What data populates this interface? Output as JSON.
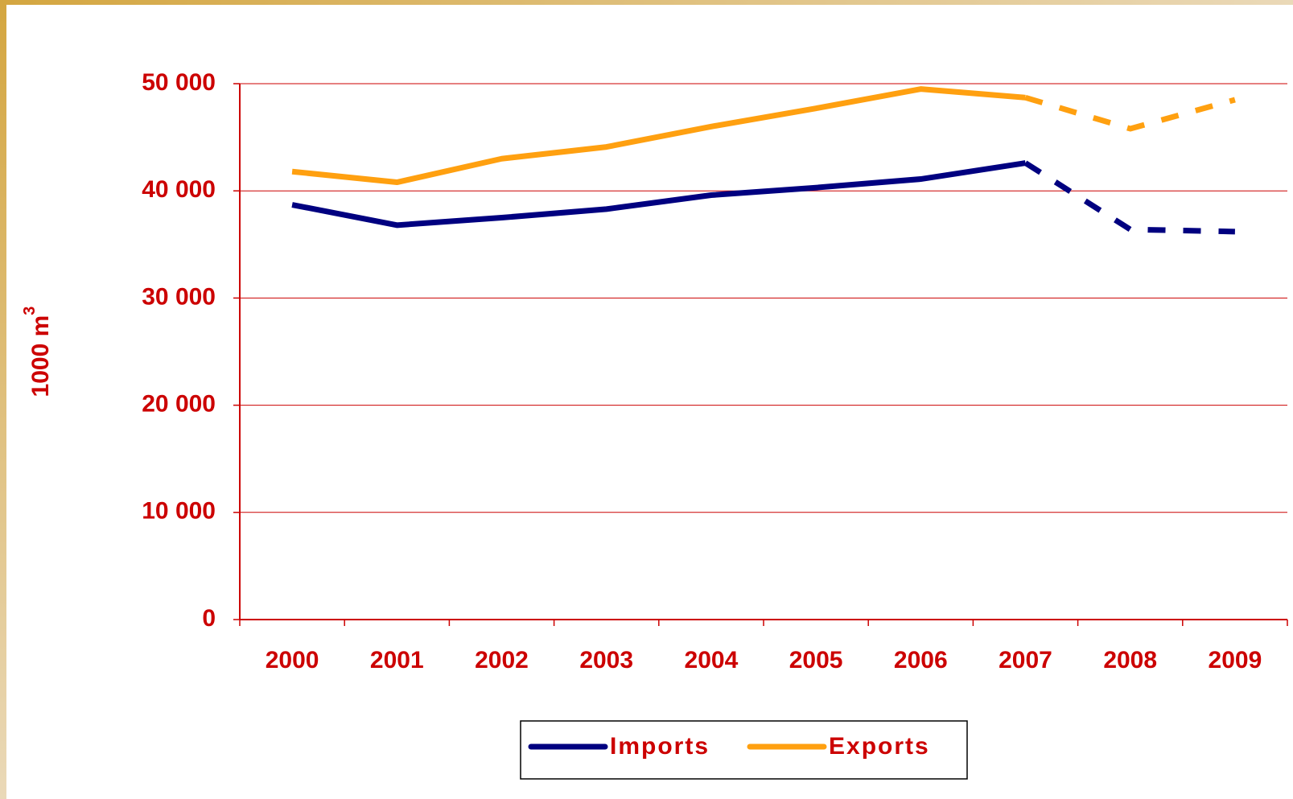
{
  "chart_data": {
    "type": "line",
    "ylabel": {
      "text": "1000 m",
      "superscript": "3"
    },
    "categories": [
      "2000",
      "2001",
      "2002",
      "2003",
      "2004",
      "2005",
      "2006",
      "2007",
      "2008",
      "2009"
    ],
    "series": [
      {
        "name": "Imports",
        "color": "#000080",
        "values": [
          38700,
          36800,
          37500,
          38300,
          39600,
          40300,
          41100,
          42600,
          36400,
          36200
        ]
      },
      {
        "name": "Exports",
        "color": "#ffa010",
        "values": [
          41800,
          40800,
          43000,
          44100,
          46000,
          47700,
          49500,
          48700,
          45800,
          48500
        ]
      }
    ],
    "dashed_from": "2007",
    "ylim": [
      0,
      50000
    ],
    "yticks": [
      0,
      {
        "value": 10000,
        "label": "10 000"
      },
      {
        "value": 20000,
        "label": "20 000"
      },
      {
        "value": 30000,
        "label": "30 000"
      },
      {
        "value": 40000,
        "label": "40 000"
      },
      {
        "value": 50000,
        "label": "50 000"
      }
    ],
    "grid": true,
    "legend": "bottom"
  }
}
